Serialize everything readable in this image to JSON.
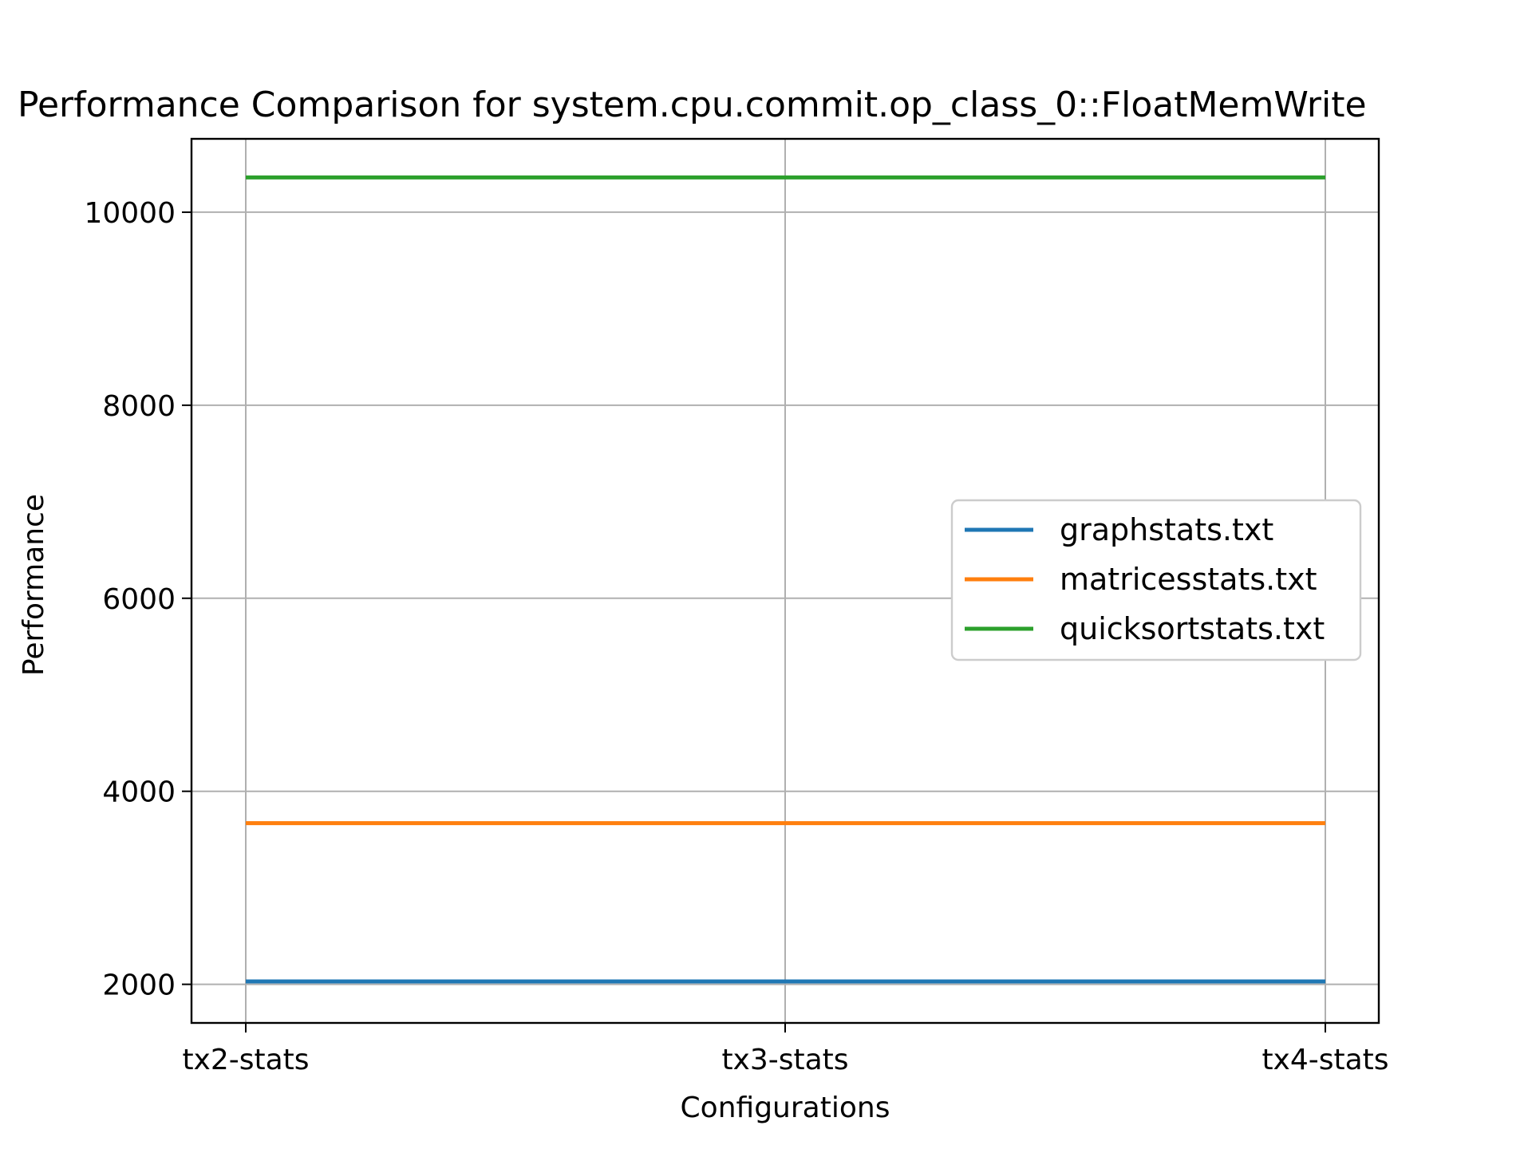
{
  "chart_data": {
    "type": "line",
    "title": "Performance Comparison for system.cpu.commit.op_class_0::FloatMemWrite",
    "xlabel": "Configurations",
    "ylabel": "Performance",
    "categories": [
      "tx2-stats",
      "tx3-stats",
      "tx4-stats"
    ],
    "ylim": [
      1600,
      10760
    ],
    "yticks": [
      2000,
      4000,
      6000,
      8000,
      10000
    ],
    "grid": true,
    "legend_position": "center-right",
    "series": [
      {
        "name": "graphstats.txt",
        "color": "#1f77b4",
        "values": [
          2030,
          2030,
          2030
        ]
      },
      {
        "name": "matricesstats.txt",
        "color": "#ff7f0e",
        "values": [
          3670,
          3670,
          3670
        ]
      },
      {
        "name": "quicksortstats.txt",
        "color": "#2ca02c",
        "values": [
          10360,
          10360,
          10360
        ]
      }
    ]
  }
}
